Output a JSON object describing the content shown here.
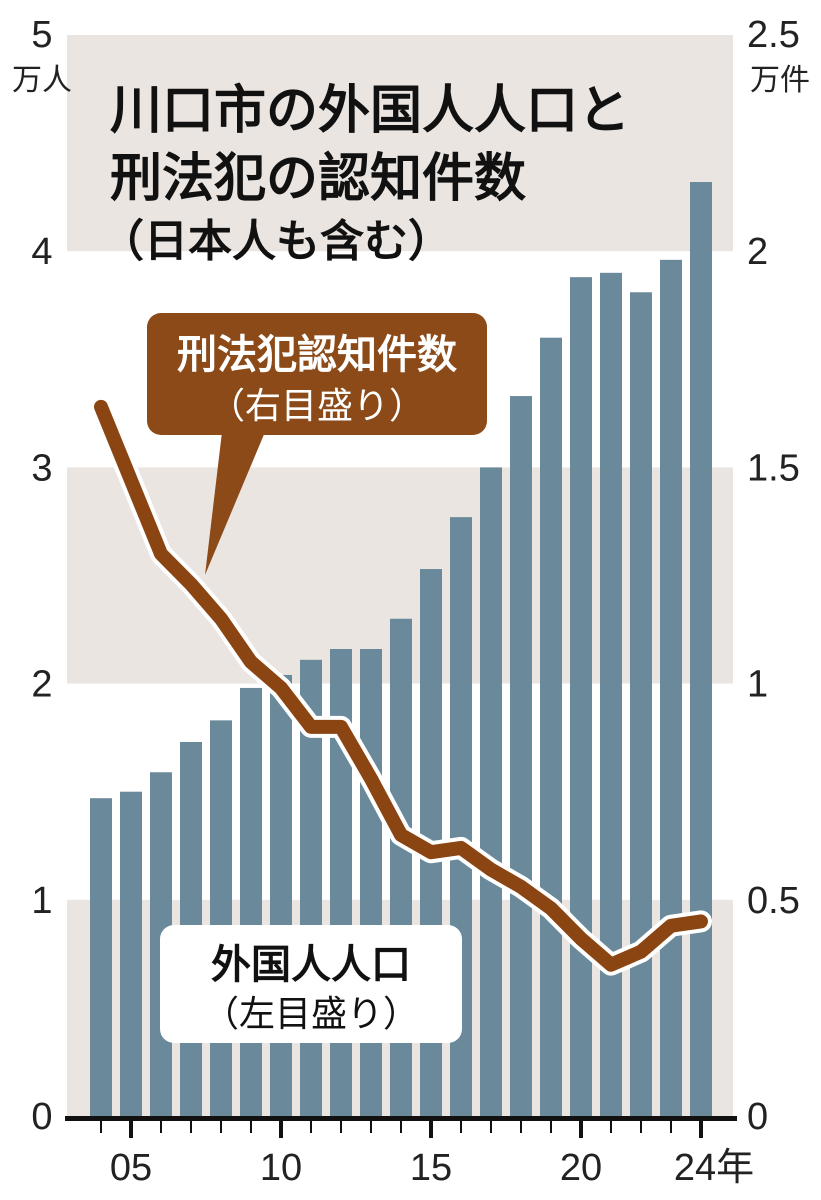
{
  "title": {
    "line1": "川口市の外国人人口と",
    "line2": "刑法犯の認知件数",
    "line3": "（日本人も含む）"
  },
  "left_axis": {
    "unit": "万人",
    "ticks": [
      "0",
      "1",
      "2",
      "3",
      "4",
      "5"
    ]
  },
  "right_axis": {
    "unit": "万件",
    "ticks": [
      "0",
      "0.5",
      "1",
      "1.5",
      "2",
      "2.5"
    ]
  },
  "x_axis": {
    "labels": [
      "05",
      "10",
      "15",
      "20",
      "24年"
    ]
  },
  "callouts": {
    "crime": {
      "title": "刑法犯認知件数",
      "sub": "（右目盛り）"
    },
    "population": {
      "title": "外国人人口",
      "sub": "（左目盛り）"
    }
  },
  "colors": {
    "bar": "#6a8a9b",
    "line": "#8b4513",
    "band": "#ebe5e1",
    "crime_box": "#8b4a18",
    "axis": "#111111"
  },
  "chart_data": {
    "type": "bar+line",
    "title": "川口市の外国人人口と刑法犯の認知件数（日本人も含む）",
    "categories": [
      2004,
      2005,
      2006,
      2007,
      2008,
      2009,
      2010,
      2011,
      2012,
      2013,
      2014,
      2015,
      2016,
      2017,
      2018,
      2019,
      2020,
      2021,
      2022,
      2023,
      2024
    ],
    "x_tick_labels": [
      "05",
      "10",
      "15",
      "20",
      "24年"
    ],
    "series": [
      {
        "name": "外国人人口（左目盛り）",
        "type": "bar",
        "axis": "left",
        "unit": "万人",
        "values": [
          1.47,
          1.5,
          1.59,
          1.73,
          1.83,
          1.98,
          2.04,
          2.11,
          2.16,
          2.16,
          2.3,
          2.53,
          2.77,
          3.0,
          3.33,
          3.6,
          3.88,
          3.9,
          3.81,
          3.96,
          4.32
        ]
      },
      {
        "name": "刑法犯認知件数（右目盛り）",
        "type": "line",
        "axis": "right",
        "unit": "万件",
        "values": [
          1.64,
          1.47,
          1.3,
          1.23,
          1.15,
          1.05,
          0.99,
          0.9,
          0.9,
          0.78,
          0.65,
          0.61,
          0.62,
          0.57,
          0.53,
          0.48,
          0.41,
          0.35,
          0.38,
          0.44,
          0.45
        ]
      }
    ],
    "ylabel_left": "万人",
    "ylabel_right": "万件",
    "ylim_left": [
      0,
      5
    ],
    "ylim_right": [
      0,
      2.5
    ],
    "grid": "alternating horizontal bands"
  }
}
